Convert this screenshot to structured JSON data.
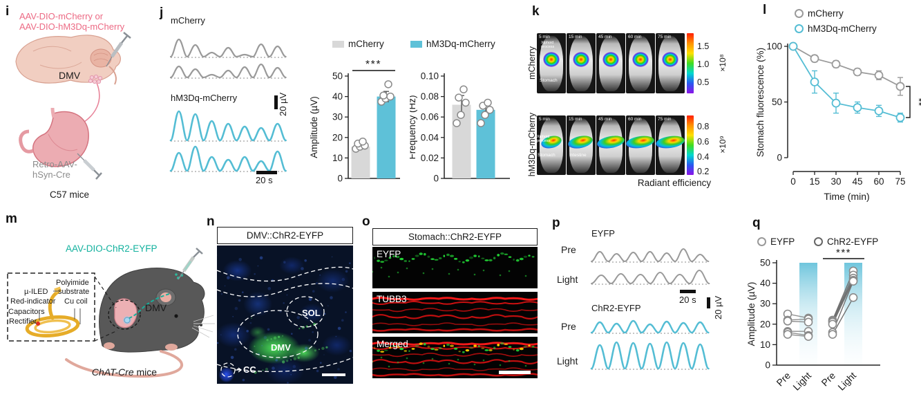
{
  "colors": {
    "pink": "#ec6a84",
    "teal": "#12b19e",
    "trace_blue": "#54bdd4",
    "trace_gray": "#9a9a9a",
    "bar_gray": "#d8d8d8",
    "bar_blue": "#5ec1d8"
  },
  "panels": {
    "i": {
      "label": "i",
      "title_line1": "AAV-DIO-mCherry or",
      "title_line2": "AAV-DIO-hM3Dq-mCherry",
      "dmv": "DMV",
      "retro_line1": "Retro-AAV-",
      "retro_line2": "hSyn-Cre",
      "mice": "C57 mice"
    },
    "j": {
      "label": "j",
      "group1": "mCherry",
      "group2": "hM3Dq-mCherry",
      "scale_volt": "20 µV",
      "scale_time": "20 s",
      "legend": [
        {
          "label": "mCherry",
          "color": "#d8d8d8"
        },
        {
          "label": "hM3Dq-mCherry",
          "color": "#5ec1d8"
        }
      ],
      "traces": {
        "mcherry": [
          [
            25,
            17,
            6,
            13,
            3,
            18,
            15
          ],
          [
            16,
            12,
            4,
            10,
            15,
            19,
            14
          ]
        ],
        "hm3dq": [
          [
            42,
            38,
            28,
            24,
            20,
            18,
            24
          ],
          [
            26,
            35,
            20,
            16,
            20,
            14,
            28
          ]
        ]
      }
    },
    "k": {
      "label": "k",
      "caption": "Radiant efficiency",
      "rows": [
        {
          "row_label": "mCherry",
          "times": [
            "5 min",
            "15 min",
            "45 min",
            "60 min",
            "75 min"
          ],
          "ann1a": "Xiphoid",
          "ann1b": "process",
          "ann2": "Stomach",
          "colorbar_ticks": [
            "1.5",
            "1.0",
            "0.5"
          ],
          "colorbar_exp": "×10⁸"
        },
        {
          "row_label": "hM3Dq-mCherry",
          "times": [
            "5 min",
            "15 min",
            "45 min",
            "60 min",
            "75 min"
          ],
          "ann1a": "Xiphoid",
          "ann1b": "process",
          "ann2": "Stomach",
          "ann3": "Intestine",
          "colorbar_ticks": [
            "0.8",
            "0.6",
            "0.4",
            "0.2"
          ],
          "colorbar_exp": "×10⁹"
        }
      ]
    },
    "l": {
      "label": "l",
      "legend": [
        {
          "label": "mCherry",
          "color": "#9a9a9a"
        },
        {
          "label": "hM3Dq-mCherry",
          "color": "#54bdd4"
        }
      ]
    },
    "m": {
      "label": "m",
      "title": "AAV-DIO-ChR2-EYFP",
      "lab_polyimide": "Polyimide",
      "lab_substrate": "substrate",
      "lab_uled": "µ-ILED",
      "lab_red": "Red-indicator",
      "lab_cucoil": "Cu coil",
      "lab_cap": "Capacitors",
      "lab_rect": "Rectifier",
      "dmv": "DMV",
      "mice_italic": "ChAT-Cre",
      "mice_rest": " mice"
    },
    "n": {
      "label": "n",
      "title": "DMV::ChR2-EYFP",
      "region1": "SOL",
      "region2": "DMV",
      "region3": "CC"
    },
    "o": {
      "label": "o",
      "title": "Stomach::ChR2-EYFP",
      "layer1": "EYFP",
      "layer2": "TUBB3",
      "layer3": "Merged"
    },
    "p": {
      "label": "p",
      "group1": "EYFP",
      "group2": "ChR2-EYFP",
      "row1": "Pre",
      "row2": "Light",
      "row3": "Pre",
      "row4": "Light",
      "scale_time": "20 s",
      "scale_volt": "20 µV",
      "traces": {
        "eyfp_pre": [
          14,
          11,
          13,
          14,
          12,
          18,
          10
        ],
        "eyfp_light": [
          12,
          14,
          13,
          16,
          13,
          19
        ],
        "chr2_pre": [
          15,
          13,
          17,
          12,
          16,
          14,
          15
        ],
        "chr2_light": [
          34,
          38,
          37,
          36,
          38,
          37,
          35
        ]
      }
    },
    "q": {
      "label": "q",
      "legend": [
        {
          "label": "EYFP"
        },
        {
          "label": "ChR2-EYFP"
        }
      ]
    }
  },
  "chart_data": [
    {
      "id": "amplitude",
      "type": "bar",
      "ylabel": "Amplitude (µV)",
      "ylim": [
        0,
        50
      ],
      "tick_vals": [
        0,
        10,
        20,
        30,
        40,
        50
      ],
      "tick_labels": [
        "0",
        "10",
        "20",
        "30",
        "40",
        "50"
      ],
      "categories": [
        "mCherry",
        "hM3Dq-mCherry"
      ],
      "values": [
        15.5,
        40
      ],
      "errors": [
        0,
        2.5
      ],
      "points": [
        [
          14.5,
          15.5,
          16,
          17,
          18
        ],
        [
          37.5,
          39,
          40,
          40.5,
          46
        ]
      ],
      "colors": [
        "#d8d8d8",
        "#5ec1d8"
      ],
      "sig": "***"
    },
    {
      "id": "frequency",
      "type": "bar",
      "ylabel": "Frequency (Hz)",
      "ylim": [
        0,
        0.1
      ],
      "tick_vals": [
        0,
        0.02,
        0.04,
        0.06,
        0.08,
        0.1
      ],
      "tick_labels": [
        "0",
        "0.02",
        "0.04",
        "0.06",
        "0.08",
        "0.10"
      ],
      "categories": [
        "mCherry",
        "hM3Dq-mCherry"
      ],
      "values": [
        0.072,
        0.067
      ],
      "errors": [
        0.009,
        0.006
      ],
      "points": [
        [
          0.054,
          0.062,
          0.074,
          0.079,
          0.087
        ],
        [
          0.054,
          0.062,
          0.067,
          0.071,
          0.074
        ]
      ],
      "colors": [
        "#d8d8d8",
        "#5ec1d8"
      ],
      "sig": null
    },
    {
      "id": "stomach_fluorescence",
      "type": "line",
      "ylabel": "Stomach fluorescence (%)",
      "xlabel": "Time (min)",
      "x": [
        0,
        15,
        30,
        45,
        60,
        75
      ],
      "xtick_labels": [
        "0",
        "15",
        "30",
        "45",
        "60",
        "75"
      ],
      "ylim": [
        0,
        100
      ],
      "ytick_vals": [
        0,
        50,
        100
      ],
      "ytick_labels": [
        "0",
        "50",
        "100"
      ],
      "series": [
        {
          "name": "mCherry",
          "color": "#9a9a9a",
          "values": [
            100,
            89,
            84,
            77,
            74,
            64
          ],
          "errors": [
            0,
            3,
            3,
            3,
            4,
            8
          ]
        },
        {
          "name": "hM3Dq-mCherry",
          "color": "#54bdd4",
          "values": [
            100,
            68,
            49,
            45,
            42,
            36
          ],
          "errors": [
            0,
            10,
            9,
            5,
            5,
            4
          ]
        }
      ],
      "sig": "**",
      "grid": false,
      "legend_position": "top"
    },
    {
      "id": "q_amplitude",
      "type": "paired",
      "ylabel": "Amplitude (µV)",
      "ylim": [
        0,
        50
      ],
      "tick_vals": [
        0,
        10,
        20,
        30,
        40,
        50
      ],
      "tick_labels": [
        "0",
        "10",
        "20",
        "30",
        "40",
        "50"
      ],
      "categories": [
        "Pre",
        "Light",
        "Pre",
        "Light"
      ],
      "band_color": "#5fbfd9",
      "groups": [
        {
          "name": "EYFP",
          "pairs": [
            [
              25,
              23
            ],
            [
              22,
              22.5
            ],
            [
              21.5,
              21
            ],
            [
              16.5,
              16.5
            ],
            [
              16,
              14.5
            ],
            [
              15,
              14
            ]
          ]
        },
        {
          "name": "ChR2-EYFP",
          "pairs": [
            [
              22,
              46
            ],
            [
              21.5,
              44
            ],
            [
              21,
              42.5
            ],
            [
              20,
              41.5
            ],
            [
              16,
              41
            ],
            [
              15,
              33
            ]
          ]
        }
      ],
      "sig": "***"
    }
  ]
}
